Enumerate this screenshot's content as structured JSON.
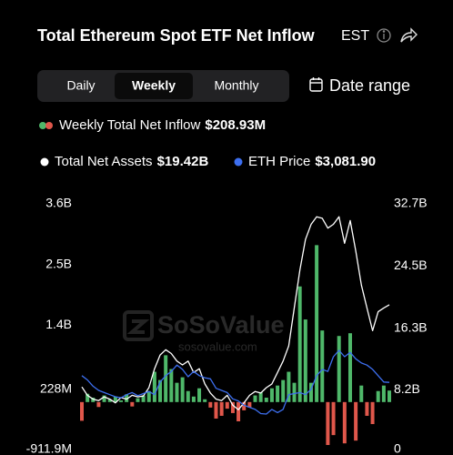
{
  "header": {
    "title": "Total Ethereum Spot ETF Net Inflow",
    "timezone": "EST"
  },
  "tabs": [
    "Daily",
    "Weekly",
    "Monthly"
  ],
  "selected_tab": 1,
  "date_range": "Date range",
  "watermark": {
    "brand": "SoSoValue",
    "url": "sosovalue.com"
  },
  "chart_data": {
    "type": "combo",
    "grid": false,
    "ylim": [
      -0.9119,
      3.6
    ],
    "yticks": [
      {
        "value": 3.6,
        "label": "3.6B"
      },
      {
        "value": 2.5,
        "label": "2.5B"
      },
      {
        "value": 1.4,
        "label": "1.4B"
      },
      {
        "value": 0.228,
        "label": "228M"
      },
      {
        "value": -0.9119,
        "label": "-911.9M"
      }
    ],
    "y2lim": [
      0,
      32.7
    ],
    "y2ticks": [
      {
        "value": 32.7,
        "label": "32.7B"
      },
      {
        "value": 24.5,
        "label": "24.5B"
      },
      {
        "value": 16.3,
        "label": "16.3B"
      },
      {
        "value": 8.2,
        "label": "8.2B"
      },
      0
    ],
    "series": [
      {
        "name": "Weekly Total Net Inflow",
        "legend_value": "$208.93M",
        "kind": "bar",
        "color": "#4fb86a",
        "negative_color": "#e0574b",
        "values": [
          -0.34,
          0.15,
          0.08,
          -0.09,
          0.12,
          0.05,
          0.1,
          0.03,
          0.14,
          -0.08,
          0.07,
          0.12,
          0.2,
          0.55,
          0.4,
          0.85,
          0.6,
          0.35,
          0.45,
          0.2,
          0.1,
          0.25,
          0.05,
          -0.1,
          -0.3,
          -0.25,
          -0.12,
          -0.2,
          -0.35,
          -0.15,
          -0.1,
          0.12,
          0.18,
          0.08,
          0.25,
          0.3,
          0.4,
          0.55,
          0.35,
          2.1,
          1.5,
          0.35,
          2.85,
          1.3,
          -0.78,
          -0.6,
          1.2,
          -0.75,
          1.25,
          -0.7,
          0.3,
          -0.25,
          -0.4,
          0.2,
          0.3,
          0.20893
        ]
      },
      {
        "name": "Total Net Assets",
        "legend_value": "$19.42B",
        "kind": "line",
        "axis": "y2",
        "color": "#ffffff",
        "values": [
          8.6,
          7.5,
          7.0,
          6.8,
          7.3,
          7.0,
          6.5,
          7.2,
          7.0,
          7.5,
          7.3,
          7.4,
          8.5,
          11.0,
          12.8,
          13.5,
          13.0,
          12.0,
          11.5,
          12.0,
          10.5,
          11.0,
          9.0,
          7.8,
          7.0,
          6.8,
          7.5,
          6.2,
          5.6,
          6.5,
          7.5,
          8.0,
          7.8,
          8.5,
          9.0,
          10.5,
          12.0,
          14.0,
          19.0,
          24.0,
          28.0,
          30.0,
          31.0,
          30.8,
          29.5,
          30.0,
          31.0,
          27.5,
          30.5,
          26.5,
          22.0,
          19.0,
          16.0,
          18.5,
          19.0,
          19.42
        ]
      },
      {
        "name": "ETH Price",
        "legend_value": "$3,081.90",
        "kind": "line",
        "color": "#3d6ff0",
        "values": [
          3400,
          3200,
          2900,
          2700,
          2600,
          2500,
          2400,
          2350,
          2500,
          2600,
          2450,
          2550,
          2650,
          2500,
          3100,
          3400,
          3600,
          3900,
          3700,
          3350,
          3600,
          3400,
          3300,
          3250,
          2800,
          2700,
          2600,
          2300,
          2200,
          2000,
          1900,
          1800,
          1600,
          1580,
          1800,
          1650,
          1800,
          2500,
          2550,
          2600,
          2500,
          2750,
          3400,
          3700,
          3600,
          4300,
          4600,
          4300,
          4500,
          4200,
          4000,
          3900,
          3700,
          3400,
          3100,
          3081.9
        ]
      }
    ]
  }
}
